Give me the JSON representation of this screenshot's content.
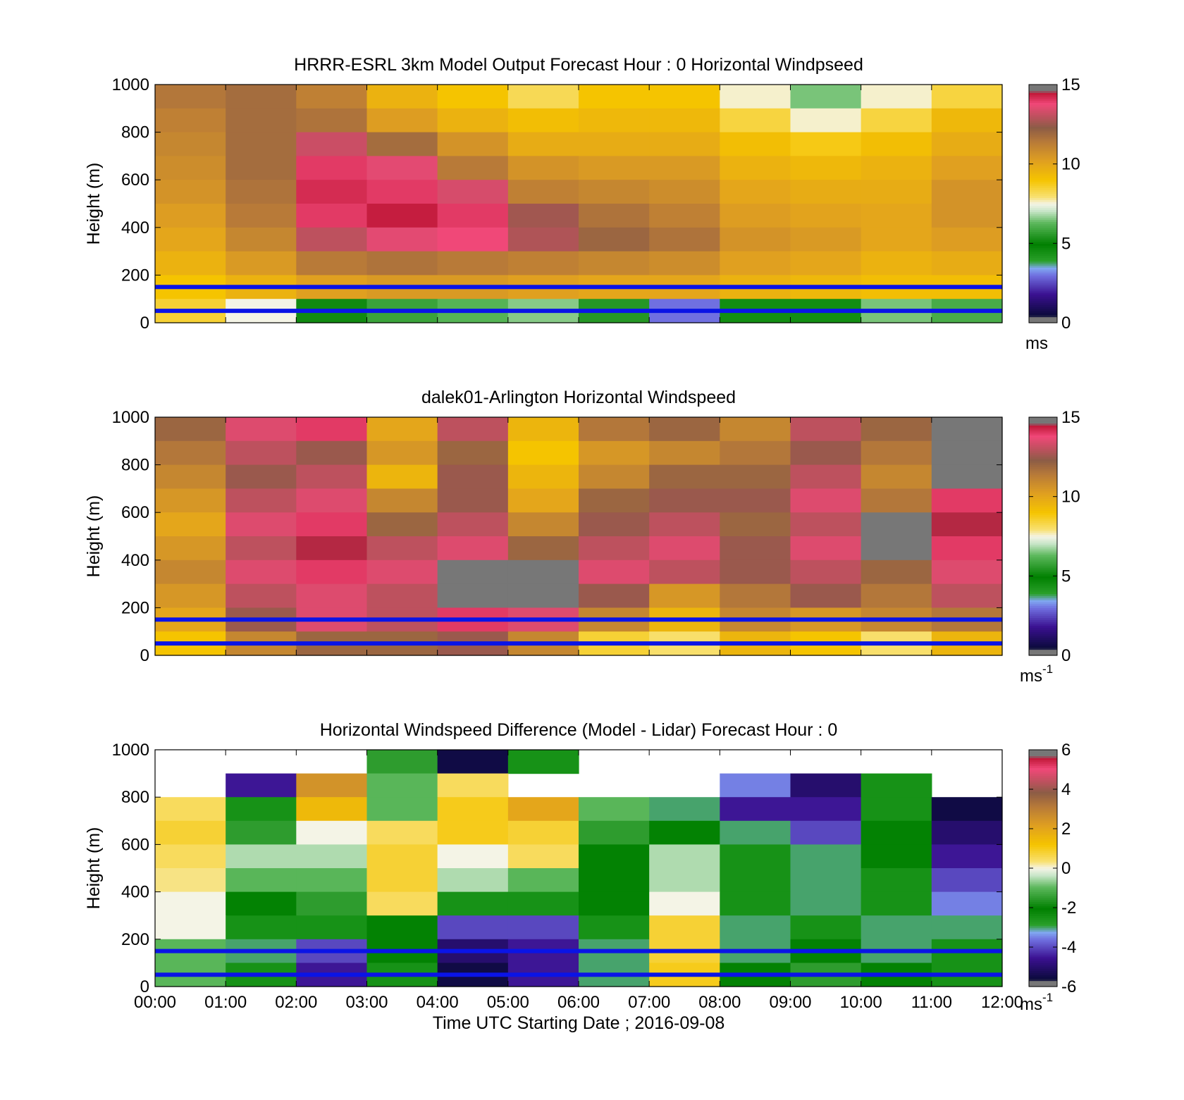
{
  "chart_data": [
    {
      "type": "heatmap",
      "title": "HRRR-ESRL 3km Model Output   Forecast Hour : 0 Horizontal Windpseed",
      "ylabel": "Height (m)",
      "xlabel": "",
      "ylim": [
        0,
        1000
      ],
      "yticks": [
        "0",
        "200",
        "400",
        "600",
        "800",
        "1000"
      ],
      "x_hours": [
        0,
        1,
        2,
        3,
        4,
        5,
        6,
        7,
        8,
        9,
        10,
        11,
        12
      ],
      "colorbar": {
        "min": 0,
        "max": 15,
        "ticks": [
          "0",
          "5",
          "10",
          "15"
        ],
        "unit": "ms",
        "unit_exponent": ""
      },
      "value_min": 0,
      "value_max": 15,
      "band_heights_m": [
        900,
        800,
        700,
        600,
        500,
        400,
        300,
        200,
        100,
        0
      ],
      "values": [
        [
          11.5,
          11.8,
          11.2,
          9.6,
          9.0,
          8.2,
          9.0,
          9.0,
          7.6,
          6.5,
          7.6,
          8.4
        ],
        [
          11.2,
          11.8,
          11.6,
          10.3,
          9.6,
          9.2,
          9.4,
          9.4,
          8.4,
          7.6,
          8.4,
          9.4
        ],
        [
          11.0,
          11.8,
          13.2,
          11.8,
          10.6,
          9.8,
          9.8,
          9.8,
          9.2,
          8.8,
          9.2,
          9.8
        ],
        [
          10.8,
          11.8,
          14.0,
          13.6,
          11.4,
          10.6,
          10.4,
          10.4,
          9.6,
          9.4,
          9.6,
          10.2
        ],
        [
          10.6,
          11.6,
          14.2,
          14.0,
          13.4,
          11.2,
          11.0,
          10.8,
          10.0,
          9.8,
          9.8,
          10.6
        ],
        [
          10.3,
          11.4,
          14.0,
          14.4,
          14.0,
          12.6,
          11.6,
          11.2,
          10.3,
          10.1,
          10.0,
          10.6
        ],
        [
          10.0,
          11.0,
          13.0,
          13.6,
          13.8,
          12.8,
          12.0,
          11.6,
          10.6,
          10.4,
          10.0,
          10.3
        ],
        [
          9.6,
          10.4,
          11.4,
          11.6,
          11.4,
          11.2,
          11.0,
          10.8,
          10.2,
          10.0,
          9.6,
          9.8
        ],
        [
          9.0,
          9.6,
          10.2,
          10.4,
          10.4,
          10.2,
          10.0,
          10.0,
          9.6,
          9.4,
          9.2,
          9.2
        ],
        [
          8.5,
          7.5,
          5.2,
          5.8,
          6.2,
          6.6,
          5.5,
          3.0,
          4.5,
          4.5,
          6.5,
          6.0
        ]
      ],
      "reference_lines_m": [
        50,
        150
      ]
    },
    {
      "type": "heatmap",
      "title": "dalek01-Arlington  Horizontal Windspeed",
      "ylabel": "Height (m)",
      "xlabel": "",
      "ylim": [
        0,
        1000
      ],
      "yticks": [
        "0",
        "200",
        "400",
        "600",
        "800",
        "1000"
      ],
      "x_hours": [
        0,
        1,
        2,
        3,
        4,
        5,
        6,
        7,
        8,
        9,
        10,
        11,
        12
      ],
      "colorbar": {
        "min": 0,
        "max": 15,
        "ticks": [
          "0",
          "5",
          "10",
          "15"
        ],
        "unit": "ms",
        "unit_exponent": "-1"
      },
      "value_min": 0,
      "value_max": 15,
      "band_heights_m": [
        900,
        800,
        700,
        600,
        500,
        400,
        300,
        200,
        100,
        0
      ],
      "values": [
        [
          12.0,
          13.5,
          14.0,
          10.0,
          13.0,
          9.5,
          11.5,
          12.0,
          11.0,
          13.0,
          12.0,
          15.0
        ],
        [
          11.5,
          13.0,
          12.5,
          10.5,
          12.0,
          9.0,
          10.5,
          11.0,
          11.5,
          12.5,
          11.5,
          15.0
        ],
        [
          11.0,
          12.5,
          13.0,
          9.5,
          12.5,
          9.5,
          11.0,
          12.0,
          12.0,
          13.0,
          11.0,
          15.0
        ],
        [
          10.5,
          13.0,
          13.5,
          11.0,
          12.5,
          10.0,
          12.0,
          12.5,
          12.5,
          13.5,
          11.5,
          14.0
        ],
        [
          10.0,
          13.5,
          14.0,
          12.0,
          13.0,
          11.0,
          12.5,
          13.0,
          12.0,
          13.0,
          15.0,
          14.5
        ],
        [
          10.5,
          13.0,
          14.5,
          13.0,
          13.5,
          12.0,
          13.0,
          13.5,
          12.5,
          13.5,
          15.0,
          14.0
        ],
        [
          11.0,
          13.5,
          14.0,
          13.5,
          15.0,
          15.0,
          13.5,
          13.0,
          12.5,
          13.0,
          12.0,
          13.5
        ],
        [
          10.5,
          13.0,
          13.5,
          13.0,
          15.0,
          15.0,
          12.5,
          10.5,
          11.5,
          12.5,
          11.5,
          13.0
        ],
        [
          10.0,
          12.5,
          13.5,
          13.0,
          14.0,
          13.5,
          11.0,
          9.5,
          11.0,
          10.5,
          11.0,
          11.5
        ],
        [
          9.0,
          11.0,
          12.0,
          12.0,
          12.5,
          11.0,
          8.5,
          8.0,
          9.5,
          9.0,
          8.0,
          9.5
        ]
      ],
      "reference_lines_m": [
        50,
        150
      ]
    },
    {
      "type": "heatmap",
      "title": "Horizontal Windspeed Difference (Model - Lidar) Forecast Hour : 0",
      "ylabel": "Height (m)",
      "xlabel": "Time UTC  Starting Date ; 2016-09-08",
      "ylim": [
        0,
        1000
      ],
      "yticks": [
        "0",
        "200",
        "400",
        "600",
        "800",
        "1000"
      ],
      "x_hours": [
        0,
        1,
        2,
        3,
        4,
        5,
        6,
        7,
        8,
        9,
        10,
        11,
        12
      ],
      "xticks": [
        "00:00",
        "01:00",
        "02:00",
        "03:00",
        "04:00",
        "05:00",
        "06:00",
        "07:00",
        "08:00",
        "09:00",
        "10:00",
        "11:00",
        "12:00"
      ],
      "colorbar": {
        "min": -6,
        "max": 6,
        "ticks": [
          "-6",
          "-4",
          "-2",
          "0",
          "2",
          "4",
          "6"
        ],
        "unit": "ms",
        "unit_exponent": "-1"
      },
      "value_min": -6,
      "value_max": 6,
      "band_heights_m": [
        900,
        800,
        700,
        600,
        500,
        400,
        300,
        200,
        100,
        0
      ],
      "values": [
        [
          null,
          null,
          null,
          -1.5,
          -5.5,
          -2.5,
          null,
          null,
          null,
          null,
          null,
          null
        ],
        [
          null,
          -4.5,
          2.5,
          -1.0,
          0.5,
          null,
          null,
          null,
          -3.5,
          -5.0,
          -2.5,
          null
        ],
        [
          0.5,
          -2.5,
          1.5,
          -1.0,
          1.0,
          2.0,
          -1.0,
          -3.0,
          -4.5,
          -4.5,
          -2.5,
          -5.5
        ],
        [
          0.8,
          -1.5,
          0.0,
          0.5,
          1.0,
          0.8,
          -1.5,
          -2.0,
          -3.0,
          -4.0,
          -2.0,
          -5.0
        ],
        [
          0.5,
          -0.5,
          -0.5,
          0.8,
          0.0,
          0.5,
          -2.0,
          -0.5,
          -2.5,
          -3.0,
          -2.0,
          -4.5
        ],
        [
          0.3,
          -1.0,
          -1.0,
          0.8,
          -0.5,
          -1.0,
          -2.0,
          -0.5,
          -2.5,
          -3.0,
          -2.5,
          -4.0
        ],
        [
          0.0,
          -2.0,
          -1.5,
          0.5,
          -2.5,
          -2.5,
          -2.0,
          0.0,
          -2.5,
          -3.0,
          -2.5,
          -3.5
        ],
        [
          0.0,
          -2.5,
          -2.5,
          -2.0,
          -4.0,
          -4.0,
          -2.5,
          0.8,
          -3.0,
          -2.5,
          -3.0,
          -3.0
        ],
        [
          -1.0,
          -3.0,
          -4.0,
          -2.0,
          -5.0,
          -4.5,
          -3.0,
          0.8,
          -3.0,
          -2.0,
          -3.0,
          -2.5
        ],
        [
          -1.0,
          -2.5,
          -4.5,
          -2.5,
          -5.5,
          -4.5,
          -3.0,
          1.0,
          -2.0,
          -1.5,
          -2.0,
          -2.5
        ]
      ],
      "reference_lines_m": [
        50,
        150
      ]
    }
  ]
}
